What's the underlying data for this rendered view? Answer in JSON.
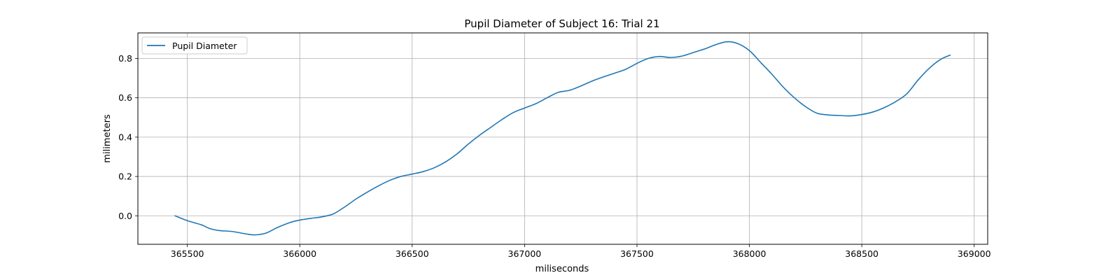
{
  "chart_data": {
    "type": "line",
    "title": "Pupil Diameter of Subject 16: Trial 21",
    "xlabel": "miliseconds",
    "ylabel": "milimeters",
    "xlim": [
      365280,
      369060
    ],
    "ylim": [
      -0.145,
      0.93
    ],
    "xticks": [
      365500,
      366000,
      366500,
      367000,
      367500,
      368000,
      368500,
      369000
    ],
    "xtick_labels": [
      "365500",
      "366000",
      "366500",
      "367000",
      "367500",
      "368000",
      "368500",
      "369000"
    ],
    "yticks": [
      0.0,
      0.2,
      0.4,
      0.6,
      0.8
    ],
    "ytick_labels": [
      "0.0",
      "0.2",
      "0.4",
      "0.6",
      "0.8"
    ],
    "grid": true,
    "legend": {
      "position": "top-left",
      "entries": [
        "Pupil Diameter"
      ]
    },
    "series": [
      {
        "name": "Pupil Diameter",
        "color": "#1f77b4",
        "x": [
          365445,
          365500,
          365560,
          365600,
          365640,
          365700,
          365760,
          365800,
          365850,
          365900,
          365960,
          366000,
          366050,
          366100,
          366150,
          366200,
          366250,
          366300,
          366350,
          366400,
          366450,
          366500,
          366550,
          366600,
          366650,
          366700,
          366750,
          366800,
          366850,
          366900,
          366950,
          367000,
          367050,
          367100,
          367150,
          367200,
          367250,
          367300,
          367350,
          367400,
          367450,
          367500,
          367550,
          367600,
          367650,
          367700,
          367750,
          367800,
          367850,
          367900,
          367950,
          368000,
          368050,
          368100,
          368150,
          368200,
          368250,
          368300,
          368350,
          368400,
          368450,
          368500,
          368550,
          368600,
          368650,
          368700,
          368750,
          368800,
          368850,
          368893
        ],
        "values": [
          0.0,
          -0.025,
          -0.045,
          -0.065,
          -0.075,
          -0.08,
          -0.092,
          -0.097,
          -0.088,
          -0.06,
          -0.033,
          -0.022,
          -0.013,
          -0.005,
          0.01,
          0.045,
          0.085,
          0.12,
          0.152,
          0.18,
          0.2,
          0.212,
          0.225,
          0.245,
          0.275,
          0.315,
          0.365,
          0.41,
          0.45,
          0.49,
          0.525,
          0.548,
          0.57,
          0.6,
          0.628,
          0.638,
          0.66,
          0.685,
          0.706,
          0.725,
          0.745,
          0.775,
          0.8,
          0.81,
          0.805,
          0.812,
          0.83,
          0.848,
          0.87,
          0.885,
          0.875,
          0.84,
          0.78,
          0.72,
          0.655,
          0.6,
          0.555,
          0.522,
          0.513,
          0.51,
          0.508,
          0.515,
          0.528,
          0.55,
          0.58,
          0.62,
          0.69,
          0.75,
          0.795,
          0.817
        ]
      }
    ]
  }
}
